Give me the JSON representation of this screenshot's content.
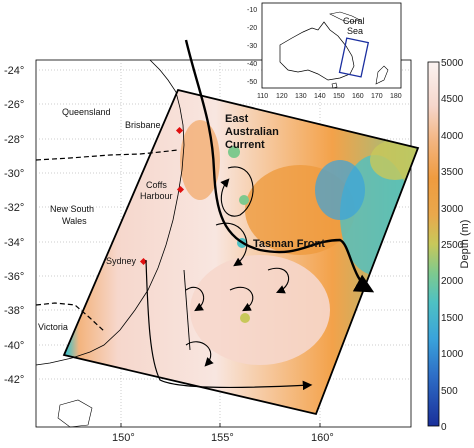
{
  "map": {
    "x_ticks": [
      "150°",
      "155°",
      "160°"
    ],
    "y_ticks": [
      "-24°",
      "-26°",
      "-28°",
      "-30°",
      "-32°",
      "-34°",
      "-36°",
      "-38°",
      "-40°",
      "-42°"
    ],
    "places": {
      "queensland": "Queensland",
      "brisbane": "Brisbane",
      "coffs": "Coffs",
      "harbour": "Harbour",
      "nsw_line1": "New South",
      "nsw_line2": "Wales",
      "sydney": "Sydney",
      "victoria": "Victoria"
    },
    "currents": {
      "eac_line1": "East",
      "eac_line2": "Australian",
      "eac_line3": "Current",
      "tasman_front": "Tasman Front"
    }
  },
  "inset": {
    "x_ticks": [
      "110",
      "120",
      "130",
      "140",
      "150",
      "160",
      "170",
      "180"
    ],
    "y_ticks": [
      "-10",
      "-20",
      "-30",
      "-40",
      "-50"
    ],
    "label_line1": "Coral",
    "label_line2": "Sea"
  },
  "colorbar": {
    "ticks": [
      "5000",
      "4500",
      "4000",
      "3500",
      "3000",
      "2500",
      "2000",
      "1500",
      "1000",
      "500",
      "0"
    ],
    "label": "Depth (m)",
    "min": 0,
    "max": 5000
  },
  "colors": {
    "deep": "#f8e6e0",
    "mid": "#f3a24a",
    "shallow": "#1b2fa0",
    "land": "#ffffff"
  }
}
